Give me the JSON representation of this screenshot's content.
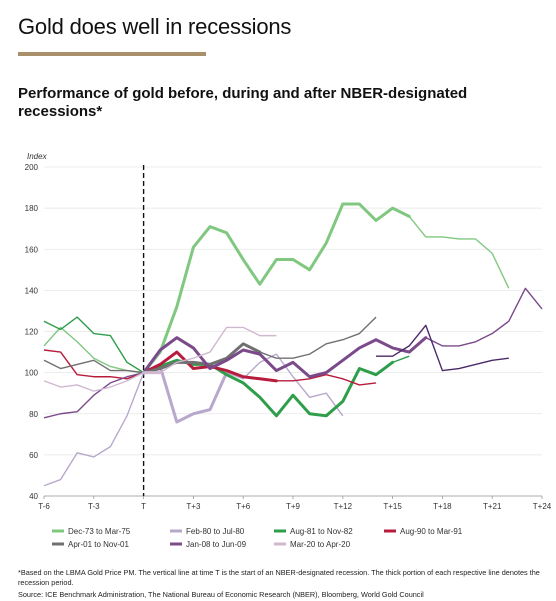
{
  "header": {
    "title": "Gold does well in recessions",
    "subtitle": "Performance of gold before, during and after NBER-designated recessions*",
    "accent_color": "#a8916a"
  },
  "chart_data": {
    "type": "line",
    "ylabel": "Index",
    "ylim": [
      40,
      200
    ],
    "yticks": [
      40,
      60,
      80,
      100,
      120,
      140,
      160,
      180,
      200
    ],
    "xlim": [
      -6,
      24
    ],
    "xticks": [
      {
        "v": -6,
        "label": "T-6"
      },
      {
        "v": -3,
        "label": "T-3"
      },
      {
        "v": 0,
        "label": "T"
      },
      {
        "v": 3,
        "label": "T+3"
      },
      {
        "v": 6,
        "label": "T+6"
      },
      {
        "v": 9,
        "label": "T+9"
      },
      {
        "v": 12,
        "label": "T+12"
      },
      {
        "v": 15,
        "label": "T+15"
      },
      {
        "v": 18,
        "label": "T+18"
      },
      {
        "v": 21,
        "label": "T+21"
      },
      {
        "v": 24,
        "label": "T+24"
      }
    ],
    "recession_start_line": 0,
    "grid": "horizontal",
    "legend_position": "bottom",
    "series": [
      {
        "name": "Dec-73 to Mar-75",
        "color": "#80c880",
        "recession_end": 16,
        "x": [
          -6,
          -5,
          -4,
          -3,
          -2,
          -1,
          0,
          1,
          2,
          3,
          4,
          5,
          6,
          7,
          8,
          9,
          10,
          11,
          12,
          13,
          14,
          15,
          16,
          17,
          18,
          19,
          20,
          21,
          22
        ],
        "values": [
          113,
          122,
          115,
          107,
          103,
          101,
          100,
          110,
          132,
          161,
          171,
          168,
          155,
          143,
          155,
          155,
          150,
          163,
          182,
          182,
          174,
          180,
          176,
          166,
          166,
          165,
          165,
          158,
          141
        ]
      },
      {
        "name": "Feb-80 to Jul-80",
        "color": "#b8a8cc",
        "recession_end": 5,
        "x": [
          -6,
          -5,
          -4,
          -3,
          -2,
          -1,
          0,
          1,
          2,
          3,
          4,
          5,
          6,
          7,
          8,
          9,
          10,
          11,
          12
        ],
        "values": [
          45,
          48,
          61,
          59,
          64,
          79,
          100,
          103,
          76,
          80,
          82,
          100,
          97,
          105,
          109,
          98,
          88,
          90,
          79
        ]
      },
      {
        "name": "Aug-81 to Nov-82",
        "color": "#2e9e4a",
        "recession_end": 15,
        "x": [
          -6,
          -5,
          -4,
          -3,
          -2,
          -1,
          0,
          1,
          2,
          3,
          4,
          5,
          6,
          7,
          8,
          9,
          10,
          11,
          12,
          13,
          14,
          15,
          16
        ],
        "values": [
          125,
          121,
          127,
          119,
          118,
          105,
          100,
          103,
          106,
          104,
          104,
          99,
          95,
          88,
          79,
          89,
          80,
          79,
          86,
          102,
          99,
          105,
          108
        ]
      },
      {
        "name": "Aug-90 to Mar-91",
        "color": "#b81c3c",
        "recession_end": 8,
        "x": [
          -6,
          -5,
          -4,
          -3,
          -2,
          -1,
          0,
          1,
          2,
          3,
          4,
          5,
          6,
          7,
          8,
          9,
          10,
          11,
          12,
          13,
          14
        ],
        "values": [
          111,
          110,
          99,
          98,
          98,
          97,
          100,
          104,
          110,
          102,
          103,
          101,
          98,
          97,
          96,
          96,
          97,
          99,
          97,
          94,
          95
        ]
      },
      {
        "name": "Apr-01 to Nov-01",
        "color": "#707070",
        "recession_end": 7,
        "x": [
          -6,
          -5,
          -4,
          -3,
          -2,
          -1,
          0,
          1,
          2,
          3,
          4,
          5,
          6,
          7,
          8,
          9,
          10,
          11,
          12,
          13,
          14
        ],
        "values": [
          106,
          102,
          104,
          106,
          101,
          101,
          100,
          102,
          105,
          105,
          104,
          107,
          114,
          110,
          107,
          107,
          109,
          114,
          116,
          119,
          127
        ]
      },
      {
        "name": "Jan-08 to Jun-09",
        "color": "#7a4a8a",
        "recession_end": 17,
        "x": [
          -6,
          -5,
          -4,
          -3,
          -2,
          -1,
          0,
          1,
          2,
          3,
          4,
          5,
          6,
          7,
          8,
          9,
          10,
          11,
          12,
          13,
          14,
          15,
          16,
          17,
          18,
          19,
          20,
          21,
          22,
          23,
          24
        ],
        "values": [
          78,
          80,
          81,
          89,
          95,
          98,
          100,
          111,
          117,
          112,
          102,
          106,
          111,
          109,
          101,
          105,
          98,
          100,
          106,
          112,
          116,
          112,
          110,
          117,
          113,
          113,
          115,
          119,
          125,
          141,
          131
        ]
      },
      {
        "name": "Mar-20 to Apr-20",
        "color": "#d0b8d0",
        "recession_end": 1,
        "x": [
          -6,
          -5,
          -4,
          -3,
          -2,
          -1,
          0,
          1,
          2,
          3,
          4,
          5,
          6,
          7,
          8
        ],
        "values": [
          96,
          93,
          94,
          91,
          93,
          96,
          100,
          100,
          105,
          107,
          110,
          122,
          122,
          118,
          118
        ]
      },
      {
        "name": "",
        "color": "#4b2a68",
        "recession_end": 0,
        "x": [
          14,
          15,
          16,
          17,
          18,
          19,
          20,
          21,
          22
        ],
        "values": [
          108,
          108,
          113,
          123,
          101,
          102,
          104,
          106,
          107
        ]
      }
    ]
  },
  "footer": {
    "footnote": "*Based on the LBMA Gold Price PM. The vertical line at time T is the start of an NBER-designated recession. The thick portion of each respective line denotes the recession period.",
    "source": "Source: ICE Benchmark Administration, The National Bureau of Economic Research (NBER), Bloomberg, World Gold Council"
  }
}
